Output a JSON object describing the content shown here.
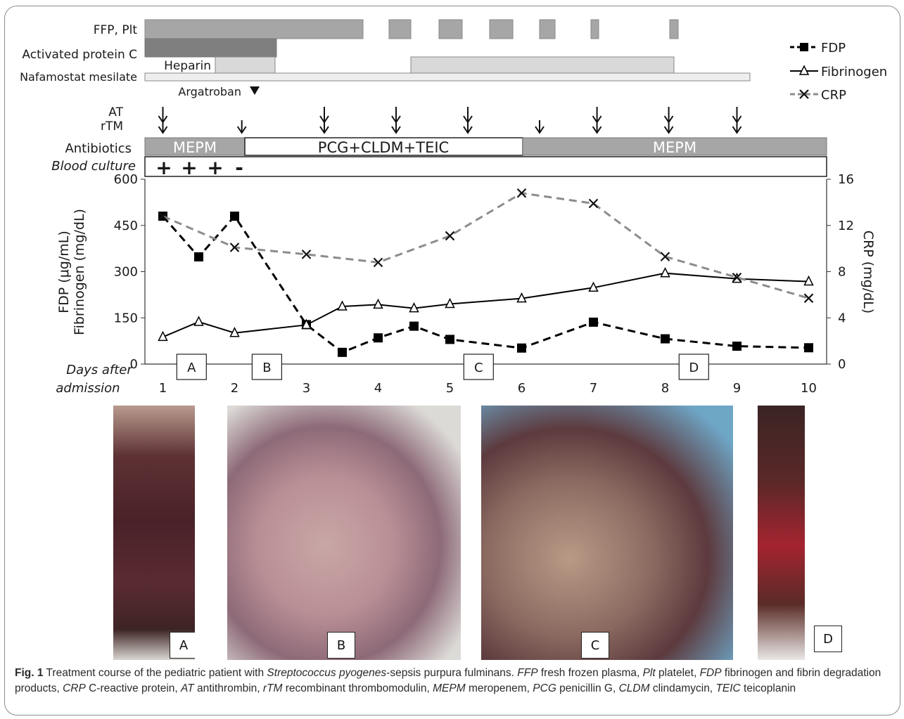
{
  "rows": {
    "ffp_plt": "FFP, Plt",
    "activated_protein_c": "Activated protein C",
    "heparin": "Heparin",
    "nafamostat": "Nafamostat mesilate",
    "argatroban": "Argatroban",
    "at": "AT",
    "rtm": "rTM",
    "antibiotics": "Antibiotics",
    "blood_culture": "Blood culture"
  },
  "antibiotic_bars": [
    "MEPM",
    "PCG+CLDM+TEIC",
    "MEPM"
  ],
  "blood_culture_marks": [
    "+",
    "+",
    "+",
    "-"
  ],
  "legend": {
    "fdp": "FDP",
    "fibrinogen": "Fibrinogen",
    "crp": "CRP"
  },
  "colors": {
    "bar_dark": "#7f7f7f",
    "bar_mid": "#a6a6a6",
    "bar_light": "#d9d9d9",
    "bar_lighter": "#eeeeee",
    "fdp": "#000000",
    "fibrinogen": "#000000",
    "crp": "#8c8c8c"
  },
  "chart_data": {
    "type": "line",
    "xlabel": "Days after admission",
    "ylabel_left": "FDP (μg/mL) Fibrinogen (mg/dL)",
    "ylabel_left_lines": [
      "FDP (μg/mL)",
      "Fibrinogen (mg/dL)"
    ],
    "ylabel_right": "CRP (mg/dL)",
    "xlim": [
      0.75,
      10.25
    ],
    "x_ticks": [
      1,
      2,
      3,
      4,
      5,
      6,
      7,
      8,
      9,
      10
    ],
    "ylim_left": [
      0,
      600
    ],
    "y_ticks_left": [
      0,
      150,
      300,
      450,
      600
    ],
    "ylim_right": [
      0,
      16
    ],
    "y_ticks_right": [
      0,
      4,
      8,
      12,
      16
    ],
    "grid": false,
    "legend_position": "top-right",
    "series": [
      {
        "name": "FDP",
        "axis": "left",
        "style": "dashed",
        "marker": "square",
        "x": [
          1,
          1.5,
          2,
          3,
          3.5,
          4,
          4.5,
          5,
          6,
          7,
          8,
          9,
          10
        ],
        "y": [
          480,
          348,
          480,
          128,
          38,
          85,
          123,
          80,
          52,
          136,
          82,
          58,
          53
        ]
      },
      {
        "name": "Fibrinogen",
        "axis": "left",
        "style": "solid",
        "marker": "triangle",
        "x": [
          1,
          1.5,
          2,
          3,
          3.5,
          4,
          4.5,
          5,
          6,
          7,
          8,
          9,
          10
        ],
        "y": [
          88,
          137,
          101,
          127,
          187,
          193,
          181,
          195,
          213,
          248,
          295,
          277,
          268
        ]
      },
      {
        "name": "CRP",
        "axis": "right",
        "style": "dashed",
        "marker": "x",
        "x": [
          1,
          2,
          3,
          4,
          5,
          6,
          7,
          8,
          9,
          10
        ],
        "y": [
          12.8,
          10.1,
          9.5,
          8.8,
          11.1,
          14.8,
          13.9,
          9.3,
          7.5,
          5.7
        ]
      }
    ],
    "photo_markers": [
      {
        "label": "A",
        "day": 1.4
      },
      {
        "label": "B",
        "day": 2.45
      },
      {
        "label": "C",
        "day": 5.4
      },
      {
        "label": "D",
        "day": 8.4
      }
    ],
    "arrows": {
      "days": [
        1,
        2.1,
        3.25,
        4.25,
        5.25,
        6.25,
        7.05,
        8.05,
        9
      ],
      "double": [
        true,
        false,
        true,
        true,
        true,
        false,
        true,
        true,
        true
      ]
    }
  },
  "photos": [
    {
      "label": "A"
    },
    {
      "label": "B"
    },
    {
      "label": "C"
    },
    {
      "label": "D"
    }
  ],
  "caption": {
    "fig": "Fig. 1",
    "lead": "Treatment course of the pediatric patient with",
    "organism": "Streptococcus pyogenes",
    "rest": "-sepsis purpura fulminans.",
    "abbr": [
      {
        "term": "FFP",
        "def": "fresh frozen plasma,"
      },
      {
        "term": "Plt",
        "def": "platelet,"
      },
      {
        "term": "FDP",
        "def": "fibrinogen and fibrin degradation products,"
      },
      {
        "term": "CRP",
        "def": "C-reactive protein,"
      },
      {
        "term": "AT",
        "def": "antithrombin,"
      },
      {
        "term": "rTM",
        "def": "recombinant thrombomodulin,"
      },
      {
        "term": "MEPM",
        "def": "meropenem,"
      },
      {
        "term": "PCG",
        "def": "penicillin G,"
      },
      {
        "term": "CLDM",
        "def": "clindamycin,"
      },
      {
        "term": "TEIC",
        "def": "teicoplanin"
      }
    ]
  }
}
